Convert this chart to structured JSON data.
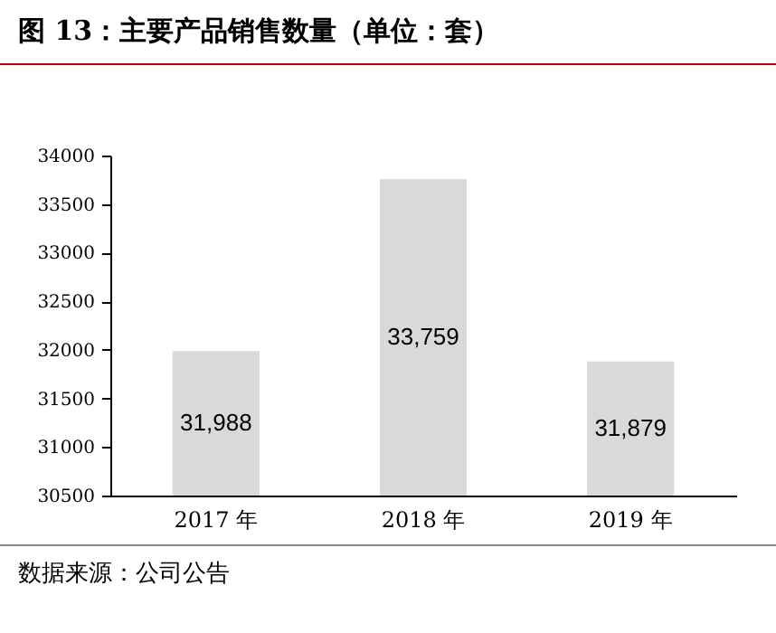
{
  "chart_data": {
    "type": "bar",
    "title": "图 13：主要产品销售数量（单位：套）",
    "categories": [
      "2017 年",
      "2018 年",
      "2019 年"
    ],
    "values": [
      31988,
      33759,
      31879
    ],
    "value_labels": [
      "31,988",
      "33,759",
      "31,879"
    ],
    "color": "#d9d9d9",
    "ylim": [
      30500,
      34000
    ],
    "yticks": [
      30500,
      31000,
      31500,
      32000,
      32500,
      33000,
      33500,
      34000
    ],
    "grid": false,
    "annotations": [
      "数据来源：公司公告"
    ]
  }
}
